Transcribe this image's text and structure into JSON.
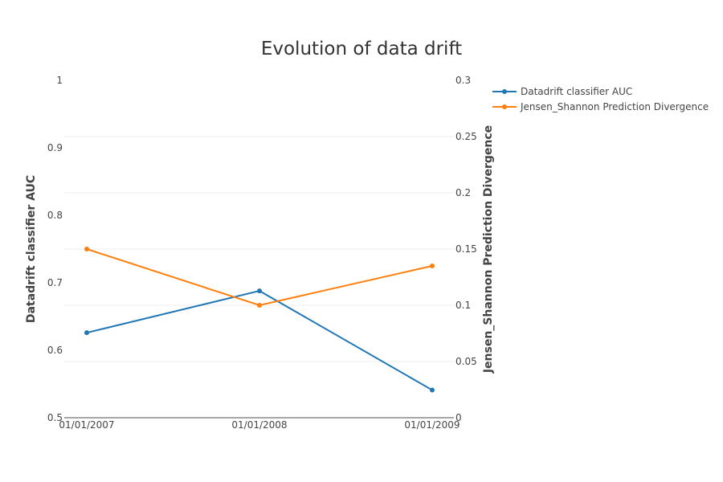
{
  "chart_data": {
    "type": "line",
    "title": "Evolution of data drift",
    "x": [
      "01/01/2007",
      "01/01/2008",
      "01/01/2009"
    ],
    "y_left": {
      "label": "Datadrift classifier AUC",
      "range": [
        0.5,
        1
      ],
      "ticks": [
        "0.5",
        "0.6",
        "0.7",
        "0.8",
        "0.9",
        "1"
      ]
    },
    "y_right": {
      "label": "Jensen_Shannon Prediction Divergence",
      "range": [
        0,
        0.3
      ],
      "ticks": [
        "0",
        "0.05",
        "0.1",
        "0.15",
        "0.2",
        "0.25",
        "0.3"
      ]
    },
    "series": [
      {
        "name": "Datadrift classifier AUC",
        "axis": "left",
        "color": "#1f77b4",
        "values": [
          0.626,
          0.688,
          0.541
        ]
      },
      {
        "name": "Jensen_Shannon Prediction Divergence",
        "axis": "right",
        "color": "#ff7f0e",
        "values": [
          0.15,
          0.1,
          0.135
        ]
      }
    ],
    "grid": true,
    "legend_position": "top-right"
  }
}
